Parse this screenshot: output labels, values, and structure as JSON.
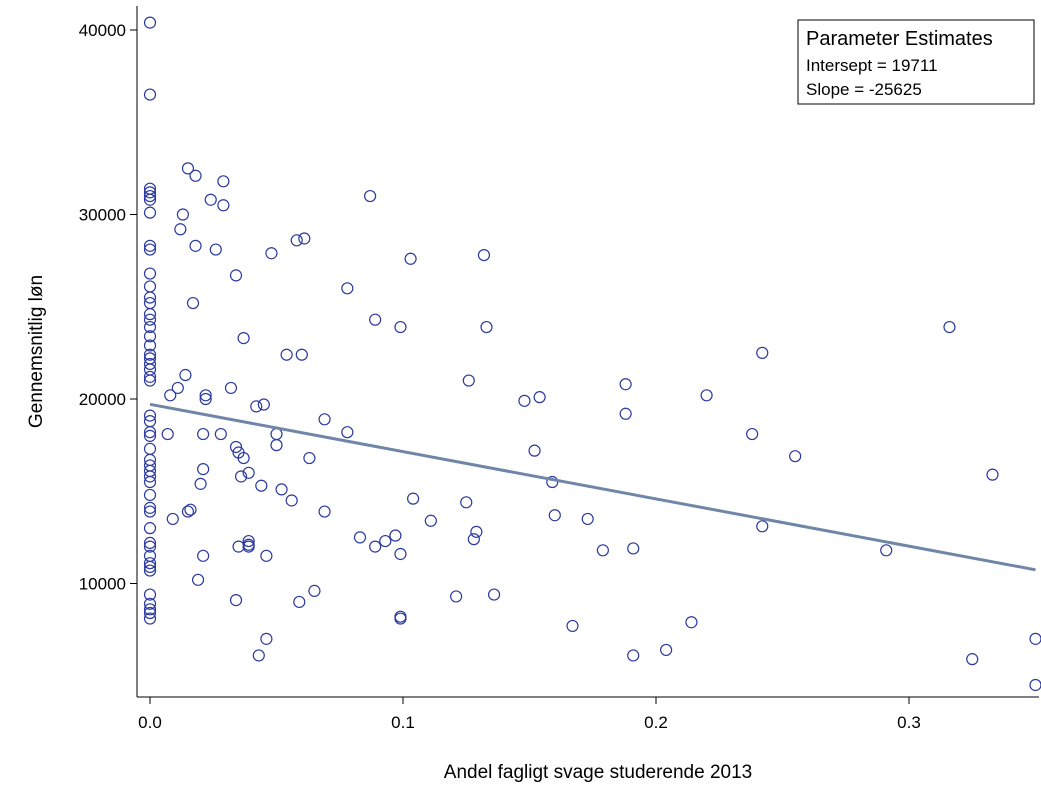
{
  "chart_data": {
    "type": "scatter",
    "title": "",
    "xlabel": "Andel fagligt svage studerende 2013",
    "ylabel": "Gennemsnitlig løn",
    "xlim": [
      -0.005,
      0.35
    ],
    "ylim": [
      4000,
      41000
    ],
    "x_ticks": [
      0.0,
      0.1,
      0.2,
      0.3
    ],
    "x_tick_labels": [
      "0.0",
      "0.1",
      "0.2",
      "0.3"
    ],
    "y_ticks": [
      10000,
      20000,
      30000,
      40000
    ],
    "y_tick_labels": [
      "10000",
      "20000",
      "30000",
      "40000"
    ],
    "grid": false,
    "legend": {
      "position": "top-right",
      "title": "Parameter Estimates",
      "lines": [
        "Intersept =  19711",
        "Slope = -25625"
      ]
    },
    "regression": {
      "intercept": 19711,
      "slope": -25625
    },
    "colors": {
      "points": "#2b3aa0",
      "line": "#6f86a6"
    },
    "points": [
      [
        0.0,
        40400
      ],
      [
        0.0,
        36500
      ],
      [
        0.0,
        31400
      ],
      [
        0.0,
        31200
      ],
      [
        0.0,
        31000
      ],
      [
        0.0,
        30800
      ],
      [
        0.0,
        30100
      ],
      [
        0.0,
        28300
      ],
      [
        0.0,
        28100
      ],
      [
        0.0,
        26800
      ],
      [
        0.0,
        26100
      ],
      [
        0.0,
        25500
      ],
      [
        0.0,
        25200
      ],
      [
        0.0,
        24600
      ],
      [
        0.0,
        24300
      ],
      [
        0.0,
        23900
      ],
      [
        0.0,
        23400
      ],
      [
        0.0,
        22900
      ],
      [
        0.0,
        22400
      ],
      [
        0.0,
        22200
      ],
      [
        0.0,
        21900
      ],
      [
        0.0,
        21600
      ],
      [
        0.0,
        21200
      ],
      [
        0.0,
        21000
      ],
      [
        0.0,
        19100
      ],
      [
        0.0,
        18800
      ],
      [
        0.0,
        18200
      ],
      [
        0.0,
        18000
      ],
      [
        0.0,
        17300
      ],
      [
        0.0,
        16700
      ],
      [
        0.0,
        16400
      ],
      [
        0.0,
        16100
      ],
      [
        0.0,
        15800
      ],
      [
        0.0,
        15500
      ],
      [
        0.0,
        14800
      ],
      [
        0.0,
        14100
      ],
      [
        0.0,
        13900
      ],
      [
        0.0,
        13000
      ],
      [
        0.0,
        12200
      ],
      [
        0.0,
        12000
      ],
      [
        0.0,
        11500
      ],
      [
        0.0,
        11100
      ],
      [
        0.0,
        10900
      ],
      [
        0.0,
        10700
      ],
      [
        0.0,
        9400
      ],
      [
        0.0,
        8900
      ],
      [
        0.0,
        8600
      ],
      [
        0.0,
        8400
      ],
      [
        0.0,
        8100
      ],
      [
        0.007,
        18100
      ],
      [
        0.008,
        20200
      ],
      [
        0.009,
        13500
      ],
      [
        0.011,
        20600
      ],
      [
        0.012,
        29200
      ],
      [
        0.013,
        30000
      ],
      [
        0.014,
        21300
      ],
      [
        0.015,
        13900
      ],
      [
        0.016,
        14000
      ],
      [
        0.015,
        32500
      ],
      [
        0.018,
        32100
      ],
      [
        0.018,
        28300
      ],
      [
        0.017,
        25200
      ],
      [
        0.019,
        10200
      ],
      [
        0.02,
        15400
      ],
      [
        0.021,
        16200
      ],
      [
        0.021,
        18100
      ],
      [
        0.021,
        11500
      ],
      [
        0.022,
        20000
      ],
      [
        0.022,
        20200
      ],
      [
        0.024,
        30800
      ],
      [
        0.026,
        28100
      ],
      [
        0.028,
        18100
      ],
      [
        0.029,
        31800
      ],
      [
        0.029,
        30500
      ],
      [
        0.032,
        20600
      ],
      [
        0.034,
        17400
      ],
      [
        0.034,
        26700
      ],
      [
        0.034,
        9100
      ],
      [
        0.035,
        17100
      ],
      [
        0.035,
        12000
      ],
      [
        0.036,
        15800
      ],
      [
        0.037,
        23300
      ],
      [
        0.037,
        16800
      ],
      [
        0.039,
        16000
      ],
      [
        0.039,
        12300
      ],
      [
        0.039,
        12100
      ],
      [
        0.039,
        12000
      ],
      [
        0.042,
        19600
      ],
      [
        0.043,
        6100
      ],
      [
        0.044,
        15300
      ],
      [
        0.045,
        19700
      ],
      [
        0.046,
        7000
      ],
      [
        0.046,
        11500
      ],
      [
        0.048,
        27900
      ],
      [
        0.05,
        17500
      ],
      [
        0.05,
        18100
      ],
      [
        0.052,
        15100
      ],
      [
        0.054,
        22400
      ],
      [
        0.056,
        14500
      ],
      [
        0.058,
        28600
      ],
      [
        0.059,
        9000
      ],
      [
        0.06,
        22400
      ],
      [
        0.061,
        28700
      ],
      [
        0.063,
        16800
      ],
      [
        0.065,
        9600
      ],
      [
        0.069,
        13900
      ],
      [
        0.069,
        18900
      ],
      [
        0.078,
        26000
      ],
      [
        0.078,
        18200
      ],
      [
        0.083,
        12500
      ],
      [
        0.087,
        31000
      ],
      [
        0.089,
        24300
      ],
      [
        0.089,
        12000
      ],
      [
        0.093,
        12300
      ],
      [
        0.097,
        12600
      ],
      [
        0.099,
        8100
      ],
      [
        0.099,
        8200
      ],
      [
        0.099,
        23900
      ],
      [
        0.099,
        11600
      ],
      [
        0.103,
        27600
      ],
      [
        0.104,
        14600
      ],
      [
        0.111,
        13400
      ],
      [
        0.121,
        9300
      ],
      [
        0.125,
        14400
      ],
      [
        0.126,
        21000
      ],
      [
        0.128,
        12400
      ],
      [
        0.129,
        12800
      ],
      [
        0.132,
        27800
      ],
      [
        0.133,
        23900
      ],
      [
        0.136,
        9400
      ],
      [
        0.148,
        19900
      ],
      [
        0.152,
        17200
      ],
      [
        0.154,
        20100
      ],
      [
        0.159,
        15500
      ],
      [
        0.16,
        13700
      ],
      [
        0.167,
        7700
      ],
      [
        0.173,
        13500
      ],
      [
        0.179,
        11800
      ],
      [
        0.188,
        20800
      ],
      [
        0.188,
        19200
      ],
      [
        0.191,
        6100
      ],
      [
        0.191,
        11900
      ],
      [
        0.204,
        6400
      ],
      [
        0.214,
        7900
      ],
      [
        0.22,
        20200
      ],
      [
        0.238,
        18100
      ],
      [
        0.242,
        22500
      ],
      [
        0.242,
        13100
      ],
      [
        0.255,
        16900
      ],
      [
        0.291,
        11800
      ],
      [
        0.316,
        23900
      ],
      [
        0.325,
        5900
      ],
      [
        0.333,
        15900
      ],
      [
        0.35,
        7000
      ],
      [
        0.35,
        4500
      ]
    ]
  }
}
